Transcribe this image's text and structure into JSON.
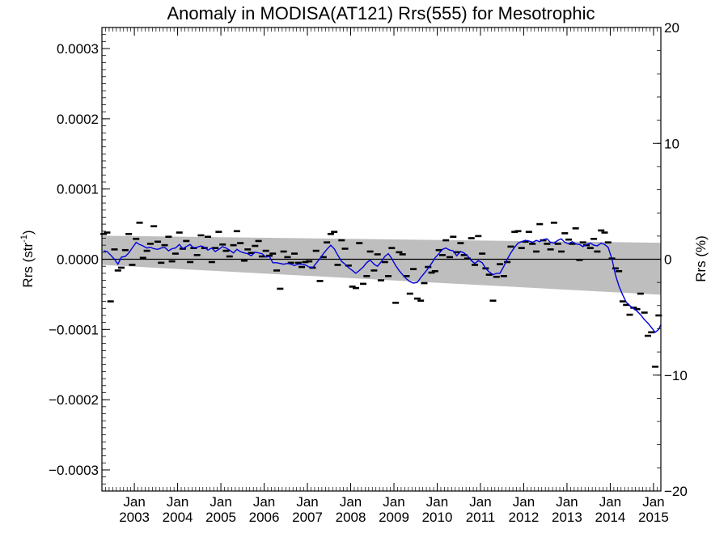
{
  "chart_data": {
    "type": "scatter",
    "title": "Anomaly in MODISA(AT121) Rrs(555) for Mesotrophic",
    "ylabel_left": {
      "main": "Rrs (str",
      "sup": "-1",
      "close": ")"
    },
    "ylabel_right": "Rrs (%)",
    "xlim": [
      2002.25,
      2015.17
    ],
    "ylim": [
      -0.00033,
      0.00033
    ],
    "y2lim": [
      -20,
      20
    ],
    "grid": false,
    "zero_line": true,
    "x_ticks": [
      {
        "x": 2003.0,
        "top": "Jan",
        "bottom": "2003"
      },
      {
        "x": 2004.0,
        "top": "Jan",
        "bottom": "2004"
      },
      {
        "x": 2005.0,
        "top": "Jan",
        "bottom": "2005"
      },
      {
        "x": 2006.0,
        "top": "Jan",
        "bottom": "2006"
      },
      {
        "x": 2007.0,
        "top": "Jan",
        "bottom": "2007"
      },
      {
        "x": 2008.0,
        "top": "Jan",
        "bottom": "2008"
      },
      {
        "x": 2009.0,
        "top": "Jan",
        "bottom": "2009"
      },
      {
        "x": 2010.0,
        "top": "Jan",
        "bottom": "2010"
      },
      {
        "x": 2011.0,
        "top": "Jan",
        "bottom": "2011"
      },
      {
        "x": 2012.0,
        "top": "Jan",
        "bottom": "2012"
      },
      {
        "x": 2013.0,
        "top": "Jan",
        "bottom": "2013"
      },
      {
        "x": 2014.0,
        "top": "Jan",
        "bottom": "2014"
      },
      {
        "x": 2015.0,
        "top": "Jan",
        "bottom": "2015"
      }
    ],
    "y_ticks_left": [
      {
        "v": 0.0003,
        "label": "0.0003"
      },
      {
        "v": 0.0002,
        "label": "0.0002"
      },
      {
        "v": 0.0001,
        "label": "0.0001"
      },
      {
        "v": 0.0,
        "label": "0.0000"
      },
      {
        "v": -0.0001,
        "label": "−0.0001"
      },
      {
        "v": -0.0002,
        "label": "−0.0002"
      },
      {
        "v": -0.0003,
        "label": "−0.0003"
      }
    ],
    "y_ticks_right": [
      {
        "v": 20,
        "label": "20"
      },
      {
        "v": 10,
        "label": "10"
      },
      {
        "v": 0,
        "label": "0"
      },
      {
        "v": -10,
        "label": "−10"
      },
      {
        "v": -20,
        "label": "−20"
      }
    ],
    "band": {
      "x": [
        2002.25,
        2015.17
      ],
      "upper": [
        3.35e-05,
        2.35e-05
      ],
      "lower": [
        -8e-06,
        -5.05e-05
      ],
      "color": "#bebebe"
    },
    "points": [
      [
        2002.29,
        3.6e-05
      ],
      [
        2002.37,
        3.8e-05
      ],
      [
        2002.45,
        -6e-05
      ],
      [
        2002.54,
        1.4e-05
      ],
      [
        2002.62,
        -1.6e-05
      ],
      [
        2002.7,
        -1.2e-05
      ],
      [
        2002.79,
        1.3e-05
      ],
      [
        2002.87,
        3.6e-05
      ],
      [
        2002.95,
        -8e-06
      ],
      [
        2003.04,
        2.9e-05
      ],
      [
        2003.12,
        5.2e-05
      ],
      [
        2003.2,
        2e-06
      ],
      [
        2003.29,
        1.2e-05
      ],
      [
        2003.37,
        2.2e-05
      ],
      [
        2003.45,
        4.7e-05
      ],
      [
        2003.54,
        2.5e-05
      ],
      [
        2003.62,
        -5e-06
      ],
      [
        2003.7,
        2e-05
      ],
      [
        2003.79,
        3.2e-05
      ],
      [
        2003.87,
        -3e-06
      ],
      [
        2003.95,
        8e-06
      ],
      [
        2004.04,
        3.8e-05
      ],
      [
        2004.12,
        1.5e-05
      ],
      [
        2004.2,
        2.6e-05
      ],
      [
        2004.29,
        -4e-06
      ],
      [
        2004.37,
        1.6e-05
      ],
      [
        2004.45,
        6e-06
      ],
      [
        2004.54,
        3.4e-05
      ],
      [
        2004.62,
        1.6e-05
      ],
      [
        2004.7,
        3.2e-05
      ],
      [
        2004.79,
        -4e-06
      ],
      [
        2004.87,
        1.6e-05
      ],
      [
        2004.95,
        3.9e-05
      ],
      [
        2005.04,
        2.1e-05
      ],
      [
        2005.12,
        1.2e-05
      ],
      [
        2005.2,
        4e-06
      ],
      [
        2005.29,
        2e-05
      ],
      [
        2005.37,
        4e-05
      ],
      [
        2005.45,
        2.3e-05
      ],
      [
        2005.54,
        -2e-06
      ],
      [
        2005.62,
        1.4e-05
      ],
      [
        2005.7,
        9e-06
      ],
      [
        2005.79,
        1.9e-05
      ],
      [
        2005.87,
        2.6e-05
      ],
      [
        2005.95,
        4e-06
      ],
      [
        2006.04,
        1.2e-05
      ],
      [
        2006.12,
        5e-06
      ],
      [
        2006.2,
        8e-06
      ],
      [
        2006.29,
        -1.6e-05
      ],
      [
        2006.37,
        -4.2e-05
      ],
      [
        2006.45,
        1.1e-05
      ],
      [
        2006.54,
        3e-06
      ],
      [
        2006.62,
        -5e-06
      ],
      [
        2006.7,
        8e-06
      ],
      [
        2006.79,
        -5e-06
      ],
      [
        2006.87,
        -1.1e-05
      ],
      [
        2006.95,
        -4e-06
      ],
      [
        2007.04,
        -3e-06
      ],
      [
        2007.12,
        -1.2e-05
      ],
      [
        2007.2,
        1.2e-05
      ],
      [
        2007.29,
        -3.1e-05
      ],
      [
        2007.37,
        3e-06
      ],
      [
        2007.45,
        2.4e-05
      ],
      [
        2007.54,
        3.6e-05
      ],
      [
        2007.62,
        3.9e-05
      ],
      [
        2007.7,
        -8e-06
      ],
      [
        2007.79,
        2.7e-05
      ],
      [
        2007.87,
        1.5e-05
      ],
      [
        2007.95,
        -9e-06
      ],
      [
        2008.04,
        -3.9e-05
      ],
      [
        2008.12,
        -4.1e-05
      ],
      [
        2008.2,
        2.3e-05
      ],
      [
        2008.29,
        -3.5e-05
      ],
      [
        2008.37,
        -2.4e-05
      ],
      [
        2008.45,
        1.1e-05
      ],
      [
        2008.54,
        -1.6e-05
      ],
      [
        2008.62,
        7e-06
      ],
      [
        2008.7,
        -3e-05
      ],
      [
        2008.79,
        -4e-06
      ],
      [
        2008.87,
        -2.4e-05
      ],
      [
        2008.95,
        1.6e-05
      ],
      [
        2009.04,
        -6.2e-05
      ],
      [
        2009.12,
        1e-05
      ],
      [
        2009.2,
        7e-06
      ],
      [
        2009.29,
        -2.4e-05
      ],
      [
        2009.37,
        -4.9e-05
      ],
      [
        2009.45,
        -1.4e-05
      ],
      [
        2009.54,
        -5.6e-05
      ],
      [
        2009.62,
        -5.9e-05
      ],
      [
        2009.7,
        -3.4e-05
      ],
      [
        2009.79,
        -1.1e-05
      ],
      [
        2009.87,
        -1.9e-05
      ],
      [
        2009.95,
        -1.7e-05
      ],
      [
        2010.04,
        1.3e-05
      ],
      [
        2010.12,
        6e-06
      ],
      [
        2010.2,
        2.7e-05
      ],
      [
        2010.29,
        3e-06
      ],
      [
        2010.37,
        3.2e-05
      ],
      [
        2010.45,
        1e-05
      ],
      [
        2010.54,
        2.3e-05
      ],
      [
        2010.62,
        6e-06
      ],
      [
        2010.7,
        1e-06
      ],
      [
        2010.79,
        3e-05
      ],
      [
        2010.87,
        -8e-06
      ],
      [
        2010.95,
        3.3e-05
      ],
      [
        2011.04,
        8e-06
      ],
      [
        2011.12,
        -1.3e-05
      ],
      [
        2011.2,
        -2.2e-05
      ],
      [
        2011.29,
        -5.9e-05
      ],
      [
        2011.37,
        -2.5e-05
      ],
      [
        2011.45,
        -7e-06
      ],
      [
        2011.54,
        -2.4e-05
      ],
      [
        2011.62,
        -4e-06
      ],
      [
        2011.7,
        1.8e-05
      ],
      [
        2011.79,
        3.9e-05
      ],
      [
        2011.87,
        4e-05
      ],
      [
        2011.95,
        1.6e-05
      ],
      [
        2012.04,
        2.5e-05
      ],
      [
        2012.12,
        3.9e-05
      ],
      [
        2012.2,
        2.2e-05
      ],
      [
        2012.29,
        1.1e-05
      ],
      [
        2012.37,
        5e-05
      ],
      [
        2012.45,
        2.7e-05
      ],
      [
        2012.54,
        2.2e-05
      ],
      [
        2012.62,
        1.4e-05
      ],
      [
        2012.7,
        5.2e-05
      ],
      [
        2012.79,
        2.2e-05
      ],
      [
        2012.87,
        1.1e-05
      ],
      [
        2012.95,
        3.7e-05
      ],
      [
        2013.04,
        2.8e-05
      ],
      [
        2013.12,
        2.2e-05
      ],
      [
        2013.2,
        4.4e-05
      ],
      [
        2013.29,
        -1e-06
      ],
      [
        2013.37,
        2.4e-05
      ],
      [
        2013.45,
        2e-05
      ],
      [
        2013.54,
        1.6e-05
      ],
      [
        2013.62,
        2.9e-05
      ],
      [
        2013.7,
        1.1e-05
      ],
      [
        2013.79,
        4.1e-05
      ],
      [
        2013.87,
        3.8e-05
      ],
      [
        2013.95,
        2.4e-05
      ],
      [
        2014.04,
        1e-06
      ],
      [
        2014.12,
        -1.3e-05
      ],
      [
        2014.2,
        -1.7e-05
      ],
      [
        2014.29,
        -6e-05
      ],
      [
        2014.37,
        -6.5e-05
      ],
      [
        2014.45,
        -7.9e-05
      ],
      [
        2014.54,
        -6.9e-05
      ],
      [
        2014.62,
        -7.1e-05
      ],
      [
        2014.7,
        -4.9e-05
      ],
      [
        2014.79,
        -7.6e-05
      ],
      [
        2014.87,
        -0.000109
      ],
      [
        2014.95,
        -0.000104
      ],
      [
        2015.04,
        -0.000153
      ],
      [
        2015.12,
        -8e-05
      ]
    ],
    "smooth_color": "#0000dd",
    "smooth": [
      [
        2002.29,
        1.2e-05
      ],
      [
        2002.37,
        1.1e-05
      ],
      [
        2002.45,
        6e-06
      ],
      [
        2002.54,
        0.0
      ],
      [
        2002.62,
        -7e-06
      ],
      [
        2002.7,
        3e-06
      ],
      [
        2002.79,
        4e-06
      ],
      [
        2002.87,
        9e-06
      ],
      [
        2002.95,
        1.6e-05
      ],
      [
        2003.04,
        2.4e-05
      ],
      [
        2003.12,
        2.1e-05
      ],
      [
        2003.2,
        1.9e-05
      ],
      [
        2003.29,
        1.6e-05
      ],
      [
        2003.37,
        1.7e-05
      ],
      [
        2003.45,
        1.5e-05
      ],
      [
        2003.54,
        1.4e-05
      ],
      [
        2003.62,
        1.6e-05
      ],
      [
        2003.7,
        1.7e-05
      ],
      [
        2003.79,
        1.2e-05
      ],
      [
        2003.87,
        1.5e-05
      ],
      [
        2003.95,
        1.6e-05
      ],
      [
        2004.04,
        2.1e-05
      ],
      [
        2004.12,
        1.5e-05
      ],
      [
        2004.2,
        1.8e-05
      ],
      [
        2004.29,
        2.1e-05
      ],
      [
        2004.37,
        1.6e-05
      ],
      [
        2004.45,
        1.7e-05
      ],
      [
        2004.54,
        1.9e-05
      ],
      [
        2004.62,
        1.7e-05
      ],
      [
        2004.7,
        1.3e-05
      ],
      [
        2004.79,
        1.6e-05
      ],
      [
        2004.87,
        1.1e-05
      ],
      [
        2004.95,
        1.4e-05
      ],
      [
        2005.04,
        1.8e-05
      ],
      [
        2005.12,
        1.6e-05
      ],
      [
        2005.2,
        1.3e-05
      ],
      [
        2005.29,
        9e-06
      ],
      [
        2005.37,
        1.4e-05
      ],
      [
        2005.45,
        1.1e-05
      ],
      [
        2005.54,
        9e-06
      ],
      [
        2005.62,
        8e-06
      ],
      [
        2005.7,
        5e-06
      ],
      [
        2005.79,
        1e-05
      ],
      [
        2005.87,
        9e-06
      ],
      [
        2005.95,
        8e-06
      ],
      [
        2006.04,
        3e-06
      ],
      [
        2006.12,
        4e-06
      ],
      [
        2006.2,
        -5e-06
      ],
      [
        2006.29,
        -5e-06
      ],
      [
        2006.37,
        -6e-06
      ],
      [
        2006.45,
        -7e-06
      ],
      [
        2006.54,
        -6e-06
      ],
      [
        2006.62,
        -7e-06
      ],
      [
        2006.7,
        -9e-06
      ],
      [
        2006.79,
        -7e-06
      ],
      [
        2006.87,
        -7e-06
      ],
      [
        2006.95,
        -8e-06
      ],
      [
        2007.04,
        -1.1e-05
      ],
      [
        2007.12,
        -1.2e-05
      ],
      [
        2007.2,
        -6e-06
      ],
      [
        2007.29,
        1e-06
      ],
      [
        2007.37,
        8e-06
      ],
      [
        2007.45,
        1.4e-05
      ],
      [
        2007.54,
        2e-05
      ],
      [
        2007.62,
        1.5e-05
      ],
      [
        2007.7,
        6e-06
      ],
      [
        2007.79,
        -3e-06
      ],
      [
        2007.87,
        -7e-06
      ],
      [
        2007.95,
        -1.2e-05
      ],
      [
        2008.04,
        -1.6e-05
      ],
      [
        2008.12,
        -2e-05
      ],
      [
        2008.2,
        -1.6e-05
      ],
      [
        2008.29,
        -1.1e-05
      ],
      [
        2008.37,
        -5e-06
      ],
      [
        2008.45,
        -1e-06
      ],
      [
        2008.54,
        -7e-06
      ],
      [
        2008.62,
        -1e-05
      ],
      [
        2008.7,
        -4e-06
      ],
      [
        2008.79,
        4e-06
      ],
      [
        2008.87,
        8e-06
      ],
      [
        2008.95,
        1e-06
      ],
      [
        2009.04,
        -9e-06
      ],
      [
        2009.12,
        -1.6e-05
      ],
      [
        2009.2,
        -2.2e-05
      ],
      [
        2009.29,
        -2.8e-05
      ],
      [
        2009.37,
        -3.2e-05
      ],
      [
        2009.45,
        -3.4e-05
      ],
      [
        2009.54,
        -3.3e-05
      ],
      [
        2009.62,
        -2.6e-05
      ],
      [
        2009.7,
        -2e-05
      ],
      [
        2009.79,
        -1.3e-05
      ],
      [
        2009.87,
        -6e-06
      ],
      [
        2009.95,
        2e-06
      ],
      [
        2010.04,
        8e-06
      ],
      [
        2010.12,
        1.4e-05
      ],
      [
        2010.2,
        1.6e-05
      ],
      [
        2010.29,
        1.3e-05
      ],
      [
        2010.37,
        1.2e-05
      ],
      [
        2010.45,
        5e-06
      ],
      [
        2010.54,
        1.1e-05
      ],
      [
        2010.62,
        9e-06
      ],
      [
        2010.7,
        5e-06
      ],
      [
        2010.79,
        -2e-06
      ],
      [
        2010.87,
        -6e-06
      ],
      [
        2010.95,
        -2e-06
      ],
      [
        2011.04,
        -5e-06
      ],
      [
        2011.12,
        -1.3e-05
      ],
      [
        2011.2,
        -1.8e-05
      ],
      [
        2011.29,
        -2.2e-05
      ],
      [
        2011.37,
        -2e-05
      ],
      [
        2011.45,
        -2e-05
      ],
      [
        2011.54,
        -1e-05
      ],
      [
        2011.62,
        0.0
      ],
      [
        2011.7,
        9e-06
      ],
      [
        2011.79,
        1.7e-05
      ],
      [
        2011.87,
        2.3e-05
      ],
      [
        2011.95,
        2.5e-05
      ],
      [
        2012.04,
        2.7e-05
      ],
      [
        2012.12,
        2.6e-05
      ],
      [
        2012.2,
        2.4e-05
      ],
      [
        2012.29,
        2.7e-05
      ],
      [
        2012.37,
        2.5e-05
      ],
      [
        2012.45,
        2.8e-05
      ],
      [
        2012.54,
        2.9e-05
      ],
      [
        2012.62,
        2.4e-05
      ],
      [
        2012.7,
        2.3e-05
      ],
      [
        2012.79,
        2.7e-05
      ],
      [
        2012.87,
        2.9e-05
      ],
      [
        2012.95,
        2.4e-05
      ],
      [
        2013.04,
        2.2e-05
      ],
      [
        2013.12,
        2.5e-05
      ],
      [
        2013.2,
        2.2e-05
      ],
      [
        2013.29,
        2.1e-05
      ],
      [
        2013.37,
        1.8e-05
      ],
      [
        2013.45,
        2.1e-05
      ],
      [
        2013.54,
        2.3e-05
      ],
      [
        2013.62,
        2e-05
      ],
      [
        2013.7,
        1.9e-05
      ],
      [
        2013.79,
        2.3e-05
      ],
      [
        2013.87,
        2.1e-05
      ],
      [
        2013.95,
        1.7e-05
      ],
      [
        2014.04,
        0.0
      ],
      [
        2014.12,
        -2.2e-05
      ],
      [
        2014.2,
        -3.8e-05
      ],
      [
        2014.29,
        -5.1e-05
      ],
      [
        2014.37,
        -6.1e-05
      ],
      [
        2014.45,
        -6.6e-05
      ],
      [
        2014.54,
        -7e-05
      ],
      [
        2014.62,
        -7.4e-05
      ],
      [
        2014.7,
        -7.9e-05
      ],
      [
        2014.79,
        -8.6e-05
      ],
      [
        2014.87,
        -9.1e-05
      ],
      [
        2014.95,
        -9.7e-05
      ],
      [
        2015.04,
        -0.000104
      ],
      [
        2015.12,
        -0.0001
      ],
      [
        2015.17,
        -9.3e-05
      ]
    ]
  }
}
